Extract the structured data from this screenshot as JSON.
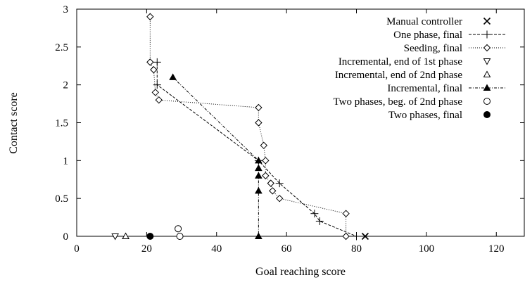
{
  "chart_data": {
    "type": "scatter",
    "xlabel": "Goal reaching score",
    "ylabel": "Contact score",
    "xlim": [
      0,
      128
    ],
    "ylim": [
      0,
      3
    ],
    "xticks": [
      0,
      20,
      40,
      60,
      80,
      100,
      120
    ],
    "yticks": [
      0,
      0.5,
      1,
      1.5,
      2,
      2.5,
      3
    ],
    "grid": false,
    "legend_position": "top-right",
    "series": [
      {
        "name": "Manual controller",
        "marker": "cross",
        "line": "none",
        "points": [
          [
            82.5,
            0
          ]
        ]
      },
      {
        "name": "One phase, final",
        "marker": "plus",
        "line": "dashed",
        "points": [
          [
            23,
            2.3
          ],
          [
            23,
            2.0
          ],
          [
            52,
            1.0
          ],
          [
            58,
            0.7
          ],
          [
            68,
            0.3
          ],
          [
            69.5,
            0.2
          ],
          [
            80,
            0
          ]
        ]
      },
      {
        "name": "Seeding, final",
        "marker": "diamond",
        "line": "dotted",
        "points": [
          [
            21,
            2.9
          ],
          [
            21,
            2.3
          ],
          [
            22,
            2.2
          ],
          [
            22.5,
            1.9
          ],
          [
            23.5,
            1.8
          ],
          [
            52,
            1.7
          ],
          [
            52,
            1.5
          ],
          [
            53.5,
            1.2
          ],
          [
            54,
            1.0
          ],
          [
            54,
            0.8
          ],
          [
            55.5,
            0.7
          ],
          [
            56,
            0.6
          ],
          [
            58,
            0.5
          ],
          [
            77,
            0.3
          ],
          [
            77,
            0
          ]
        ]
      },
      {
        "name": "Incremental, end of 1st phase",
        "marker": "triangle-down",
        "line": "none",
        "points": [
          [
            11,
            0
          ]
        ]
      },
      {
        "name": "Incremental, end of 2nd phase",
        "marker": "triangle-up",
        "line": "none",
        "points": [
          [
            14,
            0
          ]
        ]
      },
      {
        "name": "Incremental, final",
        "marker": "triangle-up-filled",
        "line": "dash-dot",
        "points": [
          [
            27.5,
            2.1
          ],
          [
            52,
            1.0
          ],
          [
            52,
            0.9
          ],
          [
            52,
            0.8
          ],
          [
            52,
            0.6
          ],
          [
            52,
            0
          ]
        ]
      },
      {
        "name": "Two phases, beg. of 2nd phase",
        "marker": "circle",
        "line": "none",
        "points": [
          [
            29,
            0.1
          ],
          [
            29.5,
            0
          ]
        ]
      },
      {
        "name": "Two phases, final",
        "marker": "circle-filled",
        "line": "none",
        "points": [
          [
            21,
            0
          ]
        ]
      }
    ]
  }
}
